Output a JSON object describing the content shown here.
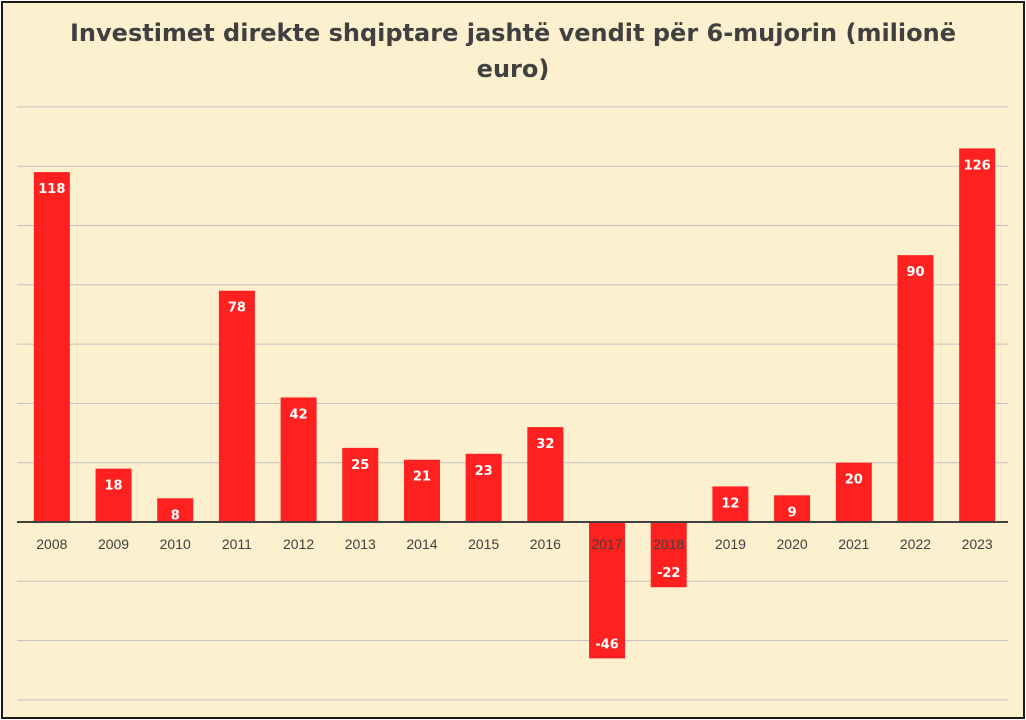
{
  "chart_data": {
    "type": "bar",
    "title_lines": [
      "Investimet direkte shqiptare jashtë vendit për 6-mujorin (milionë",
      "euro)"
    ],
    "categories": [
      "2008",
      "2009",
      "2010",
      "2011",
      "2012",
      "2013",
      "2014",
      "2015",
      "2016",
      "2017",
      "2018",
      "2019",
      "2020",
      "2021",
      "2022",
      "2023"
    ],
    "values": [
      118,
      18,
      8,
      78,
      42,
      25,
      21,
      23,
      32,
      -46,
      -22,
      12,
      9,
      20,
      90,
      126
    ],
    "data_labels": [
      "118",
      "18",
      "8",
      "78",
      "42",
      "25",
      "21",
      "23",
      "32",
      "-46",
      "-22",
      "12",
      "9",
      "20",
      "90",
      "126"
    ],
    "ylim": [
      -60,
      140
    ],
    "grid": true,
    "legend": "none",
    "colors": {
      "bar": "#ff2020",
      "background": "#fdf0cf",
      "grid": "#bfbfbf",
      "axis": "#404040",
      "tick_label": "#404040",
      "data_label": "#ffffff"
    }
  }
}
